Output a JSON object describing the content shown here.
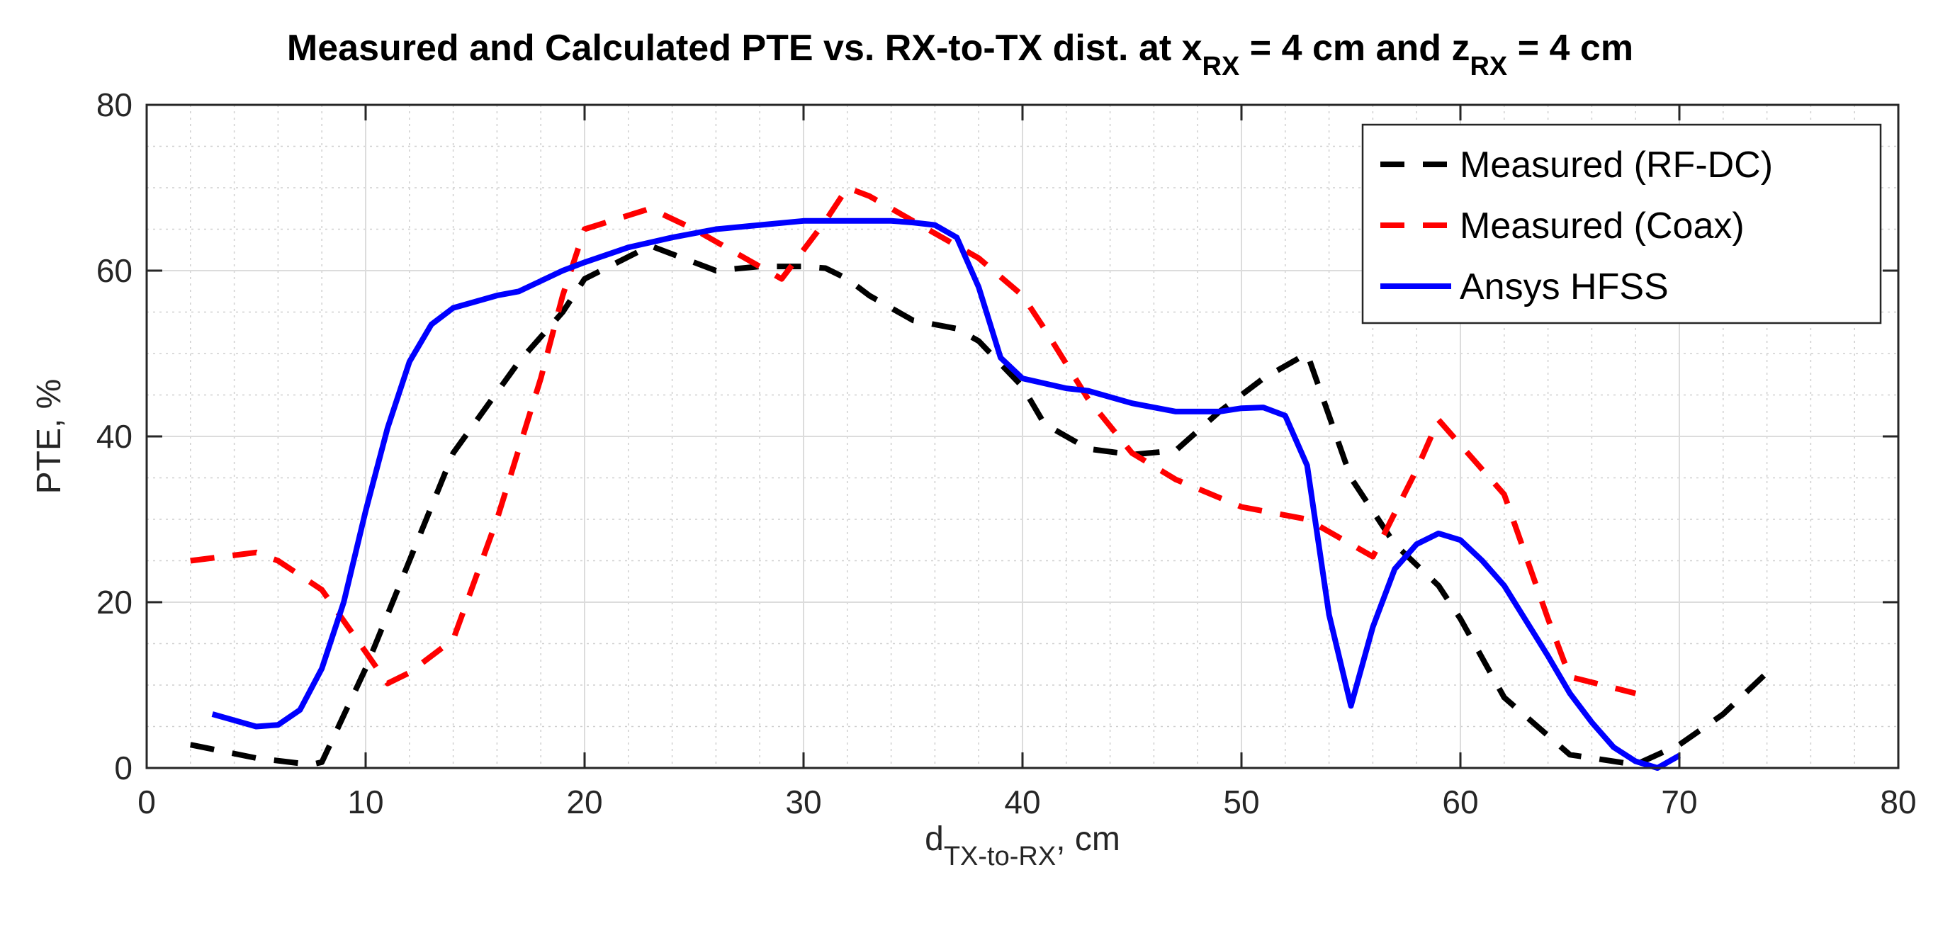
{
  "chart_data": {
    "type": "line",
    "title": {
      "main": "Measured and Calculated PTE vs. RX-to-TX dist. at x",
      "sub1": "RX",
      "mid": " = 4 cm and z",
      "sub2": "RX",
      "end": " = 4 cm"
    },
    "xlabel": {
      "main": "d",
      "sub": "TX-to-RX",
      "end": ", cm"
    },
    "ylabel": "PTE, %",
    "xlim": [
      0,
      80
    ],
    "ylim": [
      0,
      80
    ],
    "xticks": [
      0,
      10,
      20,
      30,
      40,
      50,
      60,
      70,
      80
    ],
    "yticks": [
      0,
      20,
      40,
      60,
      80
    ],
    "grid": true,
    "minor_grid": true,
    "legend_position": "top-right",
    "series": [
      {
        "name": "Measured (RF-DC)",
        "color": "#000000",
        "style": "dashed",
        "x": [
          2,
          5,
          7.5,
          8,
          10,
          12,
          14,
          17,
          19,
          20,
          23,
          26,
          28,
          30,
          31,
          32,
          33,
          35,
          37,
          38,
          40,
          41,
          43,
          45,
          47,
          49,
          51,
          53,
          55,
          57,
          59,
          60,
          62,
          65,
          68,
          70,
          72,
          74
        ],
        "values": [
          2.8,
          1.2,
          0.4,
          0.7,
          12,
          25,
          38,
          49,
          55,
          59,
          63,
          60,
          60.5,
          60.5,
          60.3,
          59,
          57,
          54,
          53,
          51.5,
          46,
          41.5,
          38.5,
          37.8,
          38.3,
          43,
          47,
          50,
          35,
          27,
          22,
          18,
          8.5,
          1.6,
          0.4,
          2.8,
          6.5,
          11.5
        ]
      },
      {
        "name": "Measured (Coax)",
        "color": "#ff0000",
        "style": "dashed",
        "x": [
          2,
          5,
          6,
          8,
          10,
          11,
          12,
          14,
          16,
          18,
          19,
          20,
          23,
          25,
          29,
          31,
          32,
          33,
          36,
          38,
          40,
          41,
          43,
          45,
          47,
          50,
          53,
          55,
          56,
          58,
          59,
          60,
          62,
          64,
          65,
          68
        ],
        "values": [
          25,
          26,
          25,
          21.5,
          14,
          10.2,
          11.5,
          15.5,
          30,
          47,
          57,
          65,
          67.5,
          65,
          59,
          66,
          70,
          69,
          64.5,
          61.5,
          57,
          53,
          44.5,
          38,
          34.8,
          31.5,
          30,
          27,
          25.5,
          36,
          42,
          39,
          33,
          18,
          11,
          9
        ]
      },
      {
        "name": "Ansys HFSS",
        "color": "#0000ff",
        "style": "solid",
        "x": [
          3,
          5,
          6,
          7,
          8,
          9,
          10,
          11,
          12,
          13,
          14,
          16,
          17,
          19,
          20,
          22,
          24,
          26,
          28,
          30,
          32,
          34,
          35,
          36,
          37,
          38,
          39,
          40,
          42,
          43,
          45,
          47,
          49,
          50,
          51,
          52,
          53,
          54,
          55,
          56,
          57,
          58,
          59,
          60,
          61,
          62,
          64,
          65,
          66,
          67,
          68,
          69,
          70
        ],
        "values": [
          6.5,
          5,
          5.2,
          7,
          12,
          20,
          31,
          41,
          49,
          53.5,
          55.5,
          57,
          57.5,
          60,
          61,
          62.8,
          64,
          65,
          65.5,
          66,
          66,
          66,
          65.8,
          65.5,
          64,
          58,
          49.5,
          47,
          45.8,
          45.5,
          44,
          43,
          43,
          43.4,
          43.5,
          42.5,
          36.5,
          18.5,
          7.5,
          17,
          24,
          27,
          28.3,
          27.5,
          25,
          22,
          13.5,
          9,
          5.5,
          2.5,
          0.8,
          0,
          1.5
        ]
      }
    ]
  }
}
